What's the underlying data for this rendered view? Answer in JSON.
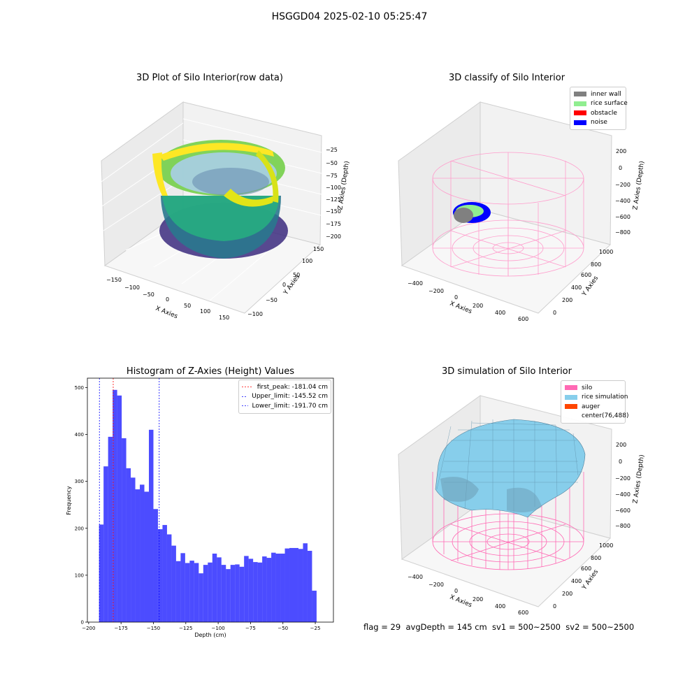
{
  "figure": {
    "suptitle": "HSGGD04 2025-02-10 05:25:47",
    "status_line": "flag = 29  avgDepth = 145 cm  sv1 = 500~2500  sv2 = 500~2500"
  },
  "panels": {
    "raw": {
      "title": "3D Plot of Silo Interior(row data)",
      "xlabel": "X Axies",
      "ylabel": "Y Axies",
      "zlabel": "Z Axies (Depth)",
      "xticks": [
        "−150",
        "−100",
        "−50",
        "0",
        "50",
        "100",
        "150"
      ],
      "yticks": [
        "−100",
        "−50",
        "0",
        "50",
        "100",
        "150"
      ],
      "zticks": [
        "−25",
        "−50",
        "−75",
        "−100",
        "−125",
        "−150",
        "−175",
        "−200"
      ]
    },
    "classify": {
      "title": "3D classify of Silo Interior",
      "xlabel": "X Axies",
      "ylabel": "Y Axies",
      "zlabel": "Z Axies (Depth)",
      "xticks": [
        "−400",
        "−200",
        "0",
        "200",
        "400",
        "600"
      ],
      "yticks": [
        "0",
        "200",
        "400",
        "600",
        "800",
        "1000"
      ],
      "zticks": [
        "200",
        "0",
        "−200",
        "−400",
        "−600",
        "−800"
      ],
      "legend": [
        {
          "label": "inner wall",
          "color": "#808080"
        },
        {
          "label": "rice surface",
          "color": "#90ee90"
        },
        {
          "label": "obstacle",
          "color": "#ff0000"
        },
        {
          "label": "noise",
          "color": "#0000ff"
        }
      ]
    },
    "simulation": {
      "title": "3D simulation of Silo Interior",
      "xlabel": "X Axies",
      "ylabel": "Y Axies",
      "zlabel": "Z Axies (Depth)",
      "xticks": [
        "−400",
        "−200",
        "0",
        "200",
        "400",
        "600"
      ],
      "yticks": [
        "0",
        "200",
        "400",
        "600",
        "800",
        "1000"
      ],
      "zticks": [
        "200",
        "0",
        "−200",
        "−400",
        "−600",
        "−800"
      ],
      "legend": [
        {
          "label": "silo",
          "color": "#ff69b4"
        },
        {
          "label": "rice simulation",
          "color": "#87ceeb"
        },
        {
          "label": "auger",
          "color": "#ff4500"
        },
        {
          "label": "center(76,488)",
          "color": ""
        }
      ]
    }
  },
  "chart_data": {
    "type": "bar",
    "title": "Histogram of Z-Axies (Height) Values",
    "xlabel": "Depth (cm)",
    "ylabel": "Frequency",
    "xlim": [
      -201,
      -11
    ],
    "ylim": [
      0,
      520
    ],
    "xticks": [
      -200,
      -175,
      -150,
      -125,
      -100,
      -75,
      -50,
      -25
    ],
    "yticks": [
      0,
      100,
      200,
      300,
      400,
      500
    ],
    "bar_color": "#0000ff",
    "bin_start": -192.0,
    "bin_width": 3.5,
    "values": [
      208,
      332,
      395,
      495,
      483,
      392,
      328,
      308,
      283,
      293,
      278,
      410,
      241,
      198,
      207,
      187,
      163,
      130,
      147,
      126,
      131,
      126,
      104,
      122,
      127,
      146,
      138,
      122,
      113,
      122,
      123,
      118,
      141,
      135,
      128,
      127,
      140,
      137,
      148,
      146,
      146,
      157,
      158,
      158,
      156,
      168,
      152,
      67
    ],
    "reference_lines": [
      {
        "label": "first_peak: -181.04 cm",
        "value": -181.04,
        "color": "#ff0000"
      },
      {
        "label": "Upper_limit: -145.52 cm",
        "value": -145.52,
        "color": "#0000ff"
      },
      {
        "label": "Lower_limit: -191.70 cm",
        "value": -191.7,
        "color": "#0000ff"
      }
    ],
    "legend_position": "upper right"
  }
}
